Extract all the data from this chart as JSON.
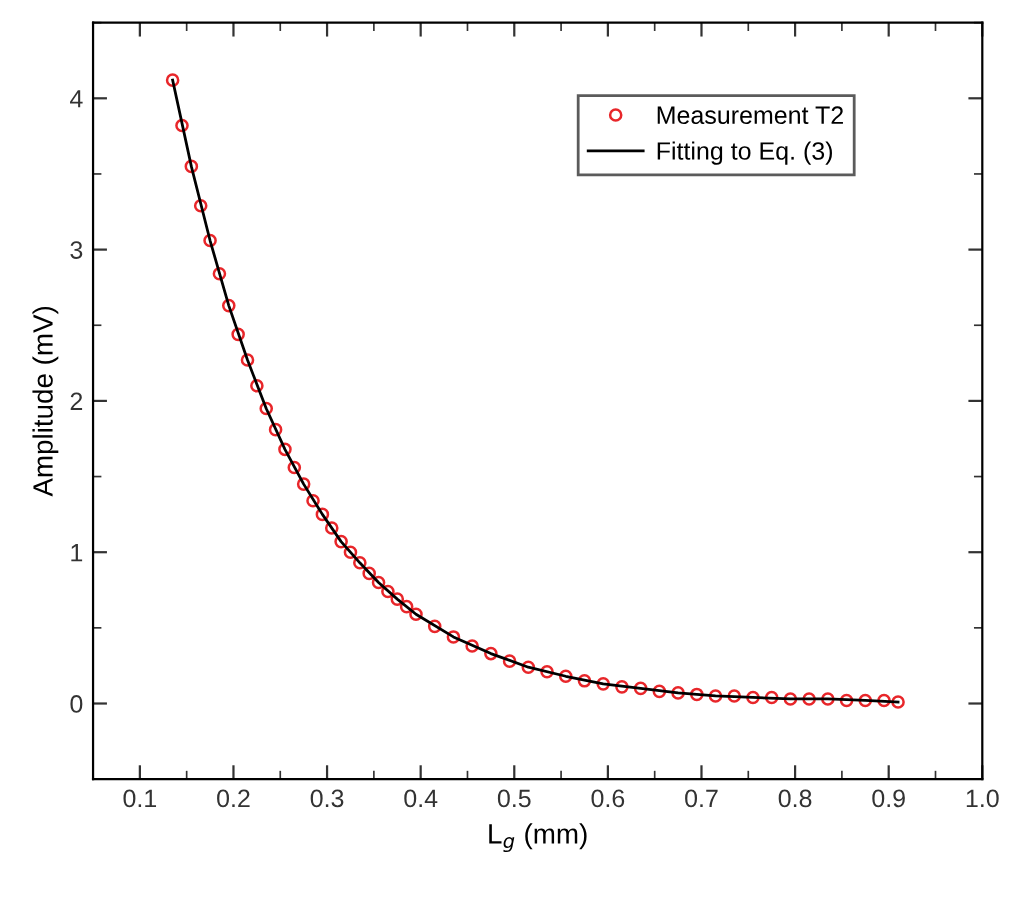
{
  "chart_data": {
    "type": "scatter",
    "xlabel": "L$_{g}$ (mm)",
    "ylabel": "Amplitude (mV)",
    "xlim": [
      0.05,
      1.0
    ],
    "xticks": [
      {
        "value": 0.1,
        "label": "0.1"
      },
      {
        "value": 0.2,
        "label": "0.2"
      },
      {
        "value": 0.3,
        "label": "0.3"
      },
      {
        "value": 0.4,
        "label": "0.4"
      },
      {
        "value": 0.5,
        "label": "0.5"
      },
      {
        "value": 0.6,
        "label": "0.6"
      },
      {
        "value": 0.7,
        "label": "0.7"
      },
      {
        "value": 0.8,
        "label": "0.8"
      },
      {
        "value": 0.9,
        "label": "0.9"
      },
      {
        "value": 1.0,
        "label": "1.0"
      }
    ],
    "ylim": [
      -0.5,
      4.5
    ],
    "yticks": [
      0,
      1,
      2,
      3,
      4
    ],
    "legend": "top right",
    "grid": false,
    "series": [
      {
        "name": "Measurement T2",
        "marker": "circle",
        "color": "#e8262a",
        "x": [
          0.135,
          0.145,
          0.155,
          0.165,
          0.175,
          0.185,
          0.195,
          0.205,
          0.215,
          0.225,
          0.235,
          0.245,
          0.255,
          0.265,
          0.275,
          0.285,
          0.295,
          0.305,
          0.315,
          0.325,
          0.335,
          0.345,
          0.355,
          0.365,
          0.375,
          0.385,
          0.395,
          0.415,
          0.435,
          0.455,
          0.475,
          0.495,
          0.515,
          0.535,
          0.555,
          0.575,
          0.595,
          0.615,
          0.635,
          0.655,
          0.675,
          0.695,
          0.715,
          0.735,
          0.755,
          0.775,
          0.795,
          0.815,
          0.835,
          0.855,
          0.875,
          0.895,
          0.91
        ],
        "values": [
          4.12,
          3.82,
          3.55,
          3.29,
          3.06,
          2.84,
          2.63,
          2.44,
          2.27,
          2.1,
          1.95,
          1.81,
          1.68,
          1.56,
          1.45,
          1.34,
          1.25,
          1.16,
          1.07,
          1.0,
          0.93,
          0.86,
          0.8,
          0.74,
          0.69,
          0.64,
          0.59,
          0.51,
          0.44,
          0.38,
          0.33,
          0.28,
          0.24,
          0.21,
          0.18,
          0.15,
          0.13,
          0.11,
          0.1,
          0.08,
          0.07,
          0.06,
          0.05,
          0.05,
          0.04,
          0.04,
          0.03,
          0.03,
          0.03,
          0.02,
          0.02,
          0.02,
          0.01
        ]
      },
      {
        "name": "Fitting to Eq. (3)",
        "type": "line",
        "marker": "none",
        "line_style": "solid",
        "color": "#000000",
        "x": [
          0.135,
          0.155,
          0.175,
          0.195,
          0.215,
          0.235,
          0.255,
          0.275,
          0.295,
          0.315,
          0.335,
          0.355,
          0.375,
          0.395,
          0.435,
          0.475,
          0.515,
          0.555,
          0.595,
          0.635,
          0.675,
          0.715,
          0.755,
          0.795,
          0.835,
          0.875,
          0.91
        ],
        "values": [
          4.12,
          3.55,
          3.06,
          2.63,
          2.27,
          1.95,
          1.68,
          1.45,
          1.25,
          1.07,
          0.93,
          0.8,
          0.69,
          0.59,
          0.44,
          0.33,
          0.24,
          0.18,
          0.13,
          0.1,
          0.07,
          0.05,
          0.04,
          0.03,
          0.03,
          0.02,
          0.01
        ]
      }
    ]
  }
}
